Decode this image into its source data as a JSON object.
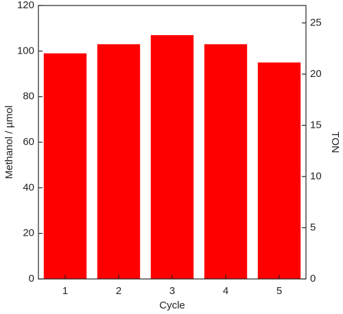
{
  "chart_data": {
    "type": "bar",
    "xlabel": "Cycle",
    "ylabel": "Methanol / µmol",
    "y2label": "TON",
    "categories": [
      "1",
      "2",
      "3",
      "4",
      "5"
    ],
    "values": [
      99,
      103,
      107,
      103,
      95
    ],
    "color": "#ff0000",
    "ylim": [
      0,
      120
    ],
    "yticks": [
      0,
      20,
      40,
      60,
      80,
      100,
      120
    ],
    "y2lim": [
      0,
      26.7
    ],
    "y2ticks": [
      0,
      5,
      10,
      15,
      20,
      25
    ]
  }
}
